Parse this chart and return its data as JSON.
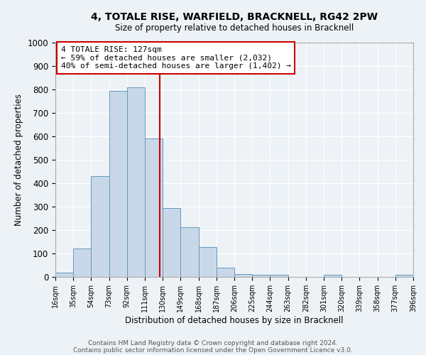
{
  "title": "4, TOTALE RISE, WARFIELD, BRACKNELL, RG42 2PW",
  "subtitle": "Size of property relative to detached houses in Bracknell",
  "xlabel": "Distribution of detached houses by size in Bracknell",
  "ylabel": "Number of detached properties",
  "bar_color": "#c8d8e8",
  "bar_edge_color": "#6699bb",
  "bin_edges": [
    16,
    35,
    54,
    73,
    92,
    111,
    130,
    149,
    168,
    187,
    206,
    225,
    244,
    263,
    282,
    301,
    320,
    339,
    358,
    377,
    396
  ],
  "bar_heights": [
    18,
    122,
    430,
    795,
    808,
    590,
    293,
    212,
    126,
    40,
    12,
    10,
    10,
    0,
    0,
    10,
    0,
    0,
    0,
    10
  ],
  "tick_labels": [
    "16sqm",
    "35sqm",
    "54sqm",
    "73sqm",
    "92sqm",
    "111sqm",
    "130sqm",
    "149sqm",
    "168sqm",
    "187sqm",
    "206sqm",
    "225sqm",
    "244sqm",
    "263sqm",
    "282sqm",
    "301sqm",
    "320sqm",
    "339sqm",
    "358sqm",
    "377sqm",
    "396sqm"
  ],
  "property_size": 127,
  "vline_color": "#cc0000",
  "annotation_text": "4 TOTALE RISE: 127sqm\n← 59% of detached houses are smaller (2,032)\n40% of semi-detached houses are larger (1,402) →",
  "annotation_box_color": "#ffffff",
  "annotation_box_edge_color": "#cc0000",
  "ylim": [
    0,
    1000
  ],
  "yticks": [
    0,
    100,
    200,
    300,
    400,
    500,
    600,
    700,
    800,
    900,
    1000
  ],
  "footer_line1": "Contains HM Land Registry data © Crown copyright and database right 2024.",
  "footer_line2": "Contains public sector information licensed under the Open Government Licence v3.0.",
  "bg_color": "#edf2f7",
  "plot_bg_color": "#edf2f7"
}
